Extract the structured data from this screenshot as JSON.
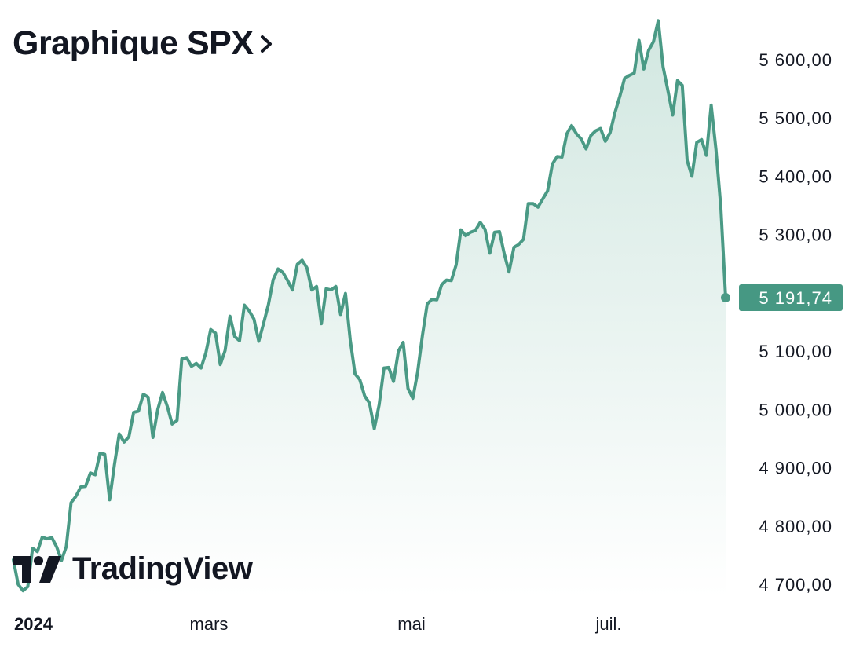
{
  "header": {
    "title": "Graphique SPX",
    "chevron_icon": "chevron-right-icon"
  },
  "logo": {
    "text": "TradingView",
    "icon": "tradingview-logo-icon"
  },
  "colors": {
    "line": "#4a9a85",
    "area_top": "#cfe6df",
    "area_bottom": "#ffffff",
    "price_tag_bg": "#469883"
  },
  "chart_data": {
    "type": "area",
    "title": "Graphique SPX",
    "xlabel": "",
    "ylabel": "",
    "x_tick_labels": [
      "2024",
      "mars",
      "mai",
      "juil."
    ],
    "y_tick_labels": [
      "5 600,00",
      "5 500,00",
      "5 400,00",
      "5 300,00",
      "5 100,00",
      "5 000,00",
      "4 900,00",
      "4 800,00",
      "4 700,00"
    ],
    "ylim": [
      4690,
      5670
    ],
    "grid": false,
    "last_value": 5191.74,
    "last_label": "5 191,74",
    "series": [
      {
        "values": [
          4742,
          4700,
          4689,
          4696,
          4762,
          4756,
          4781,
          4778,
          4780,
          4764,
          4741,
          4765,
          4840,
          4851,
          4867,
          4868,
          4891,
          4888,
          4925,
          4923,
          4845,
          4905,
          4958,
          4944,
          4953,
          4995,
          4997,
          5026,
          5021,
          4952,
          5000,
          5029,
          5005,
          4975,
          4981,
          5087,
          5089,
          5074,
          5079,
          5071,
          5097,
          5137,
          5131,
          5077,
          5101,
          5160,
          5125,
          5118,
          5179,
          5169,
          5155,
          5117,
          5148,
          5180,
          5223,
          5241,
          5235,
          5221,
          5205,
          5249,
          5256,
          5243,
          5205,
          5211,
          5147,
          5207,
          5205,
          5211,
          5163,
          5199,
          5119,
          5061,
          5051,
          5023,
          5011,
          4967,
          5008,
          5071,
          5072,
          5048,
          5100,
          5115,
          5036,
          5019,
          5064,
          5127,
          5181,
          5189,
          5188,
          5214,
          5222,
          5221,
          5248,
          5308,
          5298,
          5304,
          5307,
          5321,
          5309,
          5268,
          5304,
          5305,
          5267,
          5236,
          5278,
          5283,
          5292,
          5353,
          5353,
          5347,
          5361,
          5375,
          5421,
          5434,
          5433,
          5473,
          5487,
          5473,
          5464,
          5447,
          5470,
          5478,
          5482,
          5460,
          5475,
          5509,
          5537,
          5568,
          5573,
          5577,
          5633,
          5584,
          5616,
          5631,
          5667,
          5588,
          5547,
          5505,
          5564,
          5556,
          5427,
          5400,
          5458,
          5463,
          5436,
          5522,
          5446,
          5347,
          5192
        ]
      }
    ]
  }
}
